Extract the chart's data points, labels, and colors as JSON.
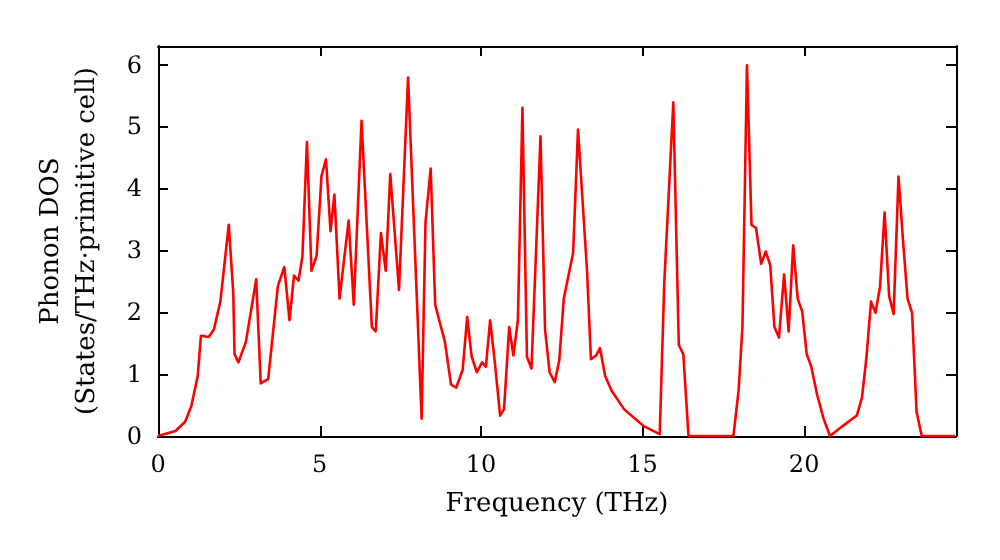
{
  "chart_data": {
    "type": "line",
    "xlabel": "Frequency (THz)",
    "ylabel": "Phonon DOS\n(States/THz·primitive cell)",
    "xlim": [
      0,
      24.7
    ],
    "ylim": [
      0,
      6.3
    ],
    "xticks": [
      0,
      5,
      10,
      15,
      20
    ],
    "yticks": [
      0,
      1,
      2,
      3,
      4,
      5,
      6
    ],
    "grid": false,
    "marker": "none",
    "line_style": "solid",
    "series": [
      {
        "color": "#ff0000",
        "x": [
          0,
          0.54,
          0.84,
          1.03,
          1.23,
          1.33,
          1.57,
          1.73,
          1.93,
          2.19,
          2.33,
          2.37,
          2.49,
          2.72,
          3.04,
          3.18,
          3.41,
          3.71,
          3.91,
          4.07,
          4.21,
          4.35,
          4.47,
          4.61,
          4.75,
          4.91,
          5.06,
          5.2,
          5.34,
          5.46,
          5.62,
          5.9,
          6.06,
          6.3,
          6.62,
          6.74,
          6.9,
          7.05,
          7.19,
          7.46,
          7.74,
          8.16,
          8.28,
          8.44,
          8.58,
          8.88,
          9.07,
          9.23,
          9.43,
          9.57,
          9.71,
          9.87,
          10.03,
          10.15,
          10.28,
          10.43,
          10.59,
          10.71,
          10.87,
          11.0,
          11.14,
          11.28,
          11.42,
          11.56,
          11.84,
          11.98,
          12.12,
          12.28,
          12.42,
          12.56,
          12.85,
          13.0,
          13.28,
          13.4,
          13.56,
          13.68,
          13.84,
          14.04,
          14.43,
          15.03,
          15.53,
          15.67,
          15.95,
          16.12,
          16.26,
          16.42,
          17.81,
          17.97,
          18.09,
          18.23,
          18.37,
          18.51,
          18.67,
          18.81,
          18.95,
          19.08,
          19.22,
          19.38,
          19.52,
          19.66,
          19.8,
          19.94,
          20.08,
          20.22,
          20.4,
          20.6,
          20.8,
          21.19,
          21.63,
          21.79,
          21.93,
          22.07,
          22.21,
          22.35,
          22.49,
          22.63,
          22.77,
          22.92,
          23.06,
          23.2,
          23.34,
          23.48,
          23.64,
          24.67
        ],
        "values": [
          0,
          0.08,
          0.23,
          0.48,
          0.97,
          1.62,
          1.6,
          1.72,
          2.17,
          3.41,
          2.31,
          1.32,
          1.19,
          1.52,
          2.53,
          0.85,
          0.92,
          2.42,
          2.73,
          1.87,
          2.59,
          2.51,
          2.9,
          4.75,
          2.67,
          2.91,
          4.2,
          4.47,
          3.31,
          3.9,
          2.22,
          3.48,
          2.12,
          5.09,
          1.76,
          1.69,
          3.28,
          2.67,
          4.23,
          2.36,
          5.79,
          0.28,
          3.45,
          4.32,
          2.12,
          1.52,
          0.83,
          0.78,
          1.07,
          1.92,
          1.28,
          1.03,
          1.19,
          1.12,
          1.87,
          1.17,
          0.33,
          0.43,
          1.76,
          1.3,
          1.87,
          5.3,
          1.28,
          1.09,
          4.84,
          1.72,
          1.03,
          0.87,
          1.22,
          2.22,
          2.96,
          4.95,
          2.67,
          1.24,
          1.3,
          1.42,
          0.97,
          0.73,
          0.43,
          0.16,
          0.03,
          2.47,
          5.39,
          1.47,
          1.32,
          0,
          0,
          0.73,
          1.76,
          5.99,
          3.41,
          3.36,
          2.78,
          2.98,
          2.76,
          1.76,
          1.59,
          2.61,
          1.69,
          3.08,
          2.22,
          2.01,
          1.32,
          1.12,
          0.67,
          0.28,
          0,
          0.16,
          0.33,
          0.62,
          1.28,
          2.17,
          1.99,
          2.42,
          3.61,
          2.26,
          1.97,
          4.19,
          3.16,
          2.22,
          1.99,
          0.39,
          0,
          0
        ]
      }
    ]
  }
}
